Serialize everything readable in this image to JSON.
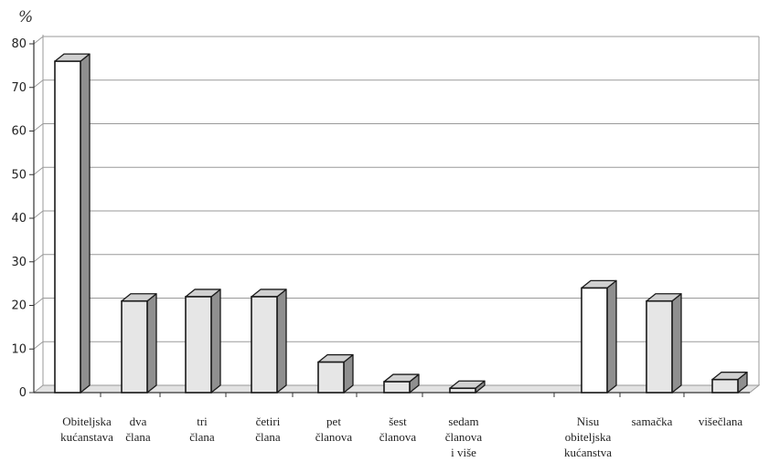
{
  "chart_data": {
    "type": "bar",
    "title": "",
    "unit_label": "%",
    "xlabel": "",
    "ylabel": "",
    "ylim": [
      0,
      80
    ],
    "yticks": [
      0,
      10,
      20,
      30,
      40,
      50,
      60,
      70,
      80
    ],
    "grid": true,
    "legend": "none",
    "categories": [
      [
        "Obiteljska",
        "kućanstava"
      ],
      [
        "dva",
        "člana"
      ],
      [
        "tri",
        "člana"
      ],
      [
        "četiri",
        "člana"
      ],
      [
        "pet",
        "članova"
      ],
      [
        "šest",
        "članova"
      ],
      [
        "sedam",
        "članova",
        "i više"
      ],
      [
        "Nisu",
        "obiteljska",
        "kućanstva"
      ],
      [
        "samačka"
      ],
      [
        "višečlana"
      ]
    ],
    "values": [
      76,
      21,
      22,
      22,
      7,
      2.5,
      1,
      24,
      21,
      3
    ],
    "bar_kind": [
      "total",
      "sub",
      "sub",
      "sub",
      "sub",
      "sub",
      "sub",
      "total",
      "sub",
      "sub"
    ],
    "colors": {
      "total_front": "#ffffff",
      "sub_front": "#e6e6e6",
      "top": "#d0d0d0",
      "side": "#8f8f8f",
      "stroke": "#1a1a1a",
      "floor": "#e2e2e2",
      "grid": "#9a9a9a"
    }
  }
}
